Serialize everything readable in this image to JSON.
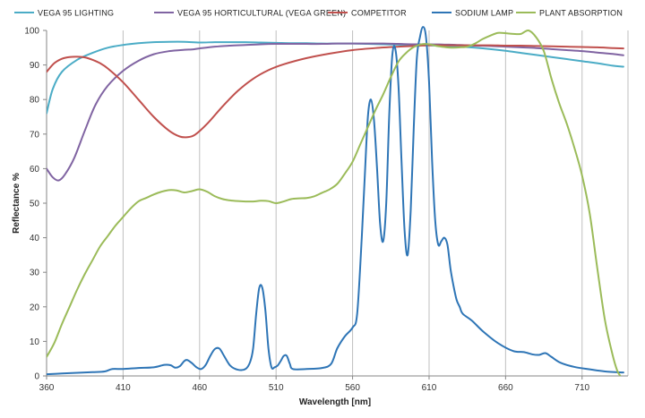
{
  "chart_data": {
    "type": "line",
    "title": "",
    "xlabel": "Wavelength [nm]",
    "ylabel": "Reflectance %",
    "xlim": [
      360,
      740
    ],
    "ylim": [
      0,
      100
    ],
    "x_ticks": [
      360,
      410,
      460,
      510,
      560,
      610,
      660,
      710
    ],
    "y_ticks": [
      0,
      10,
      20,
      30,
      40,
      50,
      60,
      70,
      80,
      90,
      100
    ],
    "grid": "vertical",
    "legend_position": "top",
    "series": [
      {
        "name": "VEGA 95 LIGHTING",
        "color": "#4bacc6",
        "points": [
          [
            360,
            76
          ],
          [
            364,
            83
          ],
          [
            370,
            88
          ],
          [
            380,
            91.5
          ],
          [
            390,
            93.5
          ],
          [
            400,
            95
          ],
          [
            410,
            95.8
          ],
          [
            420,
            96.3
          ],
          [
            430,
            96.6
          ],
          [
            440,
            96.7
          ],
          [
            450,
            96.7
          ],
          [
            460,
            96.5
          ],
          [
            470,
            96.6
          ],
          [
            480,
            96.6
          ],
          [
            490,
            96.6
          ],
          [
            500,
            96.5
          ],
          [
            510,
            96.4
          ],
          [
            520,
            96.3
          ],
          [
            530,
            96.3
          ],
          [
            540,
            96.2
          ],
          [
            550,
            96.2
          ],
          [
            560,
            96.2
          ],
          [
            570,
            96.1
          ],
          [
            580,
            96
          ],
          [
            590,
            95.9
          ],
          [
            600,
            95.8
          ],
          [
            610,
            95.7
          ],
          [
            620,
            95.5
          ],
          [
            630,
            95.3
          ],
          [
            640,
            95
          ],
          [
            650,
            94.6
          ],
          [
            660,
            94.1
          ],
          [
            670,
            93.5
          ],
          [
            680,
            92.9
          ],
          [
            690,
            92.3
          ],
          [
            700,
            91.7
          ],
          [
            710,
            91.1
          ],
          [
            720,
            90.5
          ],
          [
            730,
            89.8
          ],
          [
            737,
            89.5
          ]
        ]
      },
      {
        "name": "VEGA 95 HORTICULTURAL (VEGA GREEN)",
        "color": "#8064a2",
        "points": [
          [
            360,
            60
          ],
          [
            364,
            57.5
          ],
          [
            368,
            56.6
          ],
          [
            372,
            58.3
          ],
          [
            378,
            63
          ],
          [
            385,
            71
          ],
          [
            392,
            78.5
          ],
          [
            400,
            84
          ],
          [
            410,
            88.3
          ],
          [
            420,
            91.2
          ],
          [
            430,
            93.1
          ],
          [
            440,
            94
          ],
          [
            450,
            94.4
          ],
          [
            455,
            94.5
          ],
          [
            460,
            94.8
          ],
          [
            470,
            95.3
          ],
          [
            480,
            95.6
          ],
          [
            490,
            95.8
          ],
          [
            500,
            96
          ],
          [
            510,
            96.1
          ],
          [
            520,
            96.1
          ],
          [
            530,
            96.1
          ],
          [
            540,
            96.1
          ],
          [
            550,
            96.2
          ],
          [
            560,
            96.2
          ],
          [
            570,
            96.2
          ],
          [
            580,
            96.2
          ],
          [
            590,
            96.1
          ],
          [
            600,
            96
          ],
          [
            610,
            96
          ],
          [
            620,
            95.9
          ],
          [
            630,
            95.8
          ],
          [
            640,
            95.6
          ],
          [
            650,
            95.5
          ],
          [
            660,
            95.3
          ],
          [
            670,
            95.1
          ],
          [
            680,
            94.9
          ],
          [
            690,
            94.6
          ],
          [
            700,
            94.3
          ],
          [
            710,
            94
          ],
          [
            720,
            93.6
          ],
          [
            730,
            93.2
          ],
          [
            737,
            92.8
          ]
        ]
      },
      {
        "name": "COMPETITOR",
        "color": "#c0504d",
        "points": [
          [
            360,
            88
          ],
          [
            365,
            90.5
          ],
          [
            370,
            91.8
          ],
          [
            375,
            92.3
          ],
          [
            380,
            92.4
          ],
          [
            385,
            92.2
          ],
          [
            390,
            91.5
          ],
          [
            395,
            90.5
          ],
          [
            400,
            89
          ],
          [
            410,
            85
          ],
          [
            420,
            80
          ],
          [
            430,
            75
          ],
          [
            440,
            71
          ],
          [
            447,
            69.3
          ],
          [
            452,
            69.1
          ],
          [
            457,
            69.8
          ],
          [
            465,
            73
          ],
          [
            475,
            78
          ],
          [
            485,
            82.5
          ],
          [
            495,
            86
          ],
          [
            505,
            88.5
          ],
          [
            515,
            90.2
          ],
          [
            530,
            92
          ],
          [
            545,
            93.3
          ],
          [
            560,
            94.3
          ],
          [
            575,
            94.9
          ],
          [
            590,
            95.3
          ],
          [
            600,
            95.5
          ],
          [
            610,
            95.7
          ],
          [
            620,
            95.7
          ],
          [
            630,
            95.7
          ],
          [
            640,
            95.7
          ],
          [
            650,
            95.7
          ],
          [
            660,
            95.6
          ],
          [
            670,
            95.6
          ],
          [
            680,
            95.5
          ],
          [
            690,
            95.4
          ],
          [
            700,
            95.3
          ],
          [
            710,
            95.2
          ],
          [
            720,
            95.1
          ],
          [
            730,
            94.9
          ],
          [
            737,
            94.8
          ]
        ]
      },
      {
        "name": "SODIUM LAMP",
        "color": "#2e75b6",
        "points": [
          [
            360,
            0.5
          ],
          [
            370,
            0.7
          ],
          [
            380,
            0.9
          ],
          [
            390,
            1.1
          ],
          [
            398,
            1.3
          ],
          [
            403,
            2
          ],
          [
            410,
            2
          ],
          [
            420,
            2.3
          ],
          [
            430,
            2.5
          ],
          [
            437,
            3.2
          ],
          [
            441,
            3.1
          ],
          [
            444,
            2.4
          ],
          [
            447,
            2.8
          ],
          [
            450,
            4.3
          ],
          [
            452,
            4.6
          ],
          [
            455,
            3.7
          ],
          [
            458,
            2.5
          ],
          [
            461,
            2
          ],
          [
            464,
            3.2
          ],
          [
            467,
            5.8
          ],
          [
            470,
            7.8
          ],
          [
            473,
            7.9
          ],
          [
            476,
            5.8
          ],
          [
            480,
            3
          ],
          [
            485,
            1.8
          ],
          [
            490,
            2
          ],
          [
            493,
            4
          ],
          [
            495,
            8
          ],
          [
            497,
            18
          ],
          [
            499,
            25.5
          ],
          [
            501,
            25.5
          ],
          [
            503,
            19
          ],
          [
            505,
            8
          ],
          [
            507,
            2.5
          ],
          [
            509,
            2.5
          ],
          [
            511,
            3
          ],
          [
            513,
            4.3
          ],
          [
            515,
            5.8
          ],
          [
            517,
            5.8
          ],
          [
            519,
            3.5
          ],
          [
            521,
            2
          ],
          [
            530,
            2
          ],
          [
            540,
            2.3
          ],
          [
            546,
            3.5
          ],
          [
            550,
            8
          ],
          [
            555,
            11.5
          ],
          [
            560,
            14
          ],
          [
            563,
            18
          ],
          [
            566,
            40
          ],
          [
            568,
            58
          ],
          [
            570,
            75
          ],
          [
            572,
            80
          ],
          [
            574,
            74
          ],
          [
            576,
            60
          ],
          [
            578,
            44
          ],
          [
            580,
            39
          ],
          [
            582,
            50
          ],
          [
            584,
            76
          ],
          [
            586,
            93
          ],
          [
            588,
            94.5
          ],
          [
            590,
            84
          ],
          [
            592,
            62
          ],
          [
            594,
            42
          ],
          [
            596,
            35
          ],
          [
            598,
            48
          ],
          [
            600,
            72
          ],
          [
            602,
            92
          ],
          [
            604,
            98
          ],
          [
            606,
            101
          ],
          [
            608,
            98
          ],
          [
            610,
            85
          ],
          [
            612,
            62
          ],
          [
            614,
            45
          ],
          [
            616,
            38
          ],
          [
            618,
            39
          ],
          [
            620,
            40
          ],
          [
            622,
            38
          ],
          [
            624,
            31
          ],
          [
            626,
            26
          ],
          [
            628,
            22
          ],
          [
            630,
            20
          ],
          [
            632,
            18
          ],
          [
            638,
            16
          ],
          [
            645,
            13
          ],
          [
            655,
            9.5
          ],
          [
            665,
            7.2
          ],
          [
            672,
            6.9
          ],
          [
            678,
            6.2
          ],
          [
            682,
            6.1
          ],
          [
            686,
            6.6
          ],
          [
            690,
            5.5
          ],
          [
            696,
            3.8
          ],
          [
            705,
            2.6
          ],
          [
            715,
            1.9
          ],
          [
            725,
            1.3
          ],
          [
            737,
            1
          ]
        ]
      },
      {
        "name": "PLANT ABSORPTION",
        "color": "#9bbb59",
        "points": [
          [
            360,
            5.5
          ],
          [
            365,
            9.5
          ],
          [
            370,
            15
          ],
          [
            375,
            20
          ],
          [
            380,
            25
          ],
          [
            385,
            29.5
          ],
          [
            390,
            33.5
          ],
          [
            395,
            37.5
          ],
          [
            400,
            40.5
          ],
          [
            405,
            43.5
          ],
          [
            410,
            46
          ],
          [
            415,
            48.5
          ],
          [
            420,
            50.5
          ],
          [
            425,
            51.5
          ],
          [
            430,
            52.5
          ],
          [
            435,
            53.3
          ],
          [
            440,
            53.8
          ],
          [
            445,
            53.7
          ],
          [
            450,
            53.1
          ],
          [
            455,
            53.5
          ],
          [
            460,
            54
          ],
          [
            465,
            53.3
          ],
          [
            470,
            52
          ],
          [
            475,
            51.2
          ],
          [
            480,
            50.8
          ],
          [
            485,
            50.6
          ],
          [
            490,
            50.5
          ],
          [
            495,
            50.5
          ],
          [
            500,
            50.7
          ],
          [
            505,
            50.6
          ],
          [
            510,
            50
          ],
          [
            515,
            50.5
          ],
          [
            520,
            51.2
          ],
          [
            525,
            51.4
          ],
          [
            530,
            51.5
          ],
          [
            535,
            52
          ],
          [
            540,
            53
          ],
          [
            545,
            54
          ],
          [
            550,
            55.6
          ],
          [
            555,
            58.6
          ],
          [
            560,
            62
          ],
          [
            565,
            67
          ],
          [
            570,
            72
          ],
          [
            575,
            77
          ],
          [
            580,
            81.5
          ],
          [
            585,
            86.5
          ],
          [
            590,
            91
          ],
          [
            595,
            93.5
          ],
          [
            600,
            95.2
          ],
          [
            605,
            96
          ],
          [
            610,
            96
          ],
          [
            615,
            95.5
          ],
          [
            620,
            95.2
          ],
          [
            625,
            95
          ],
          [
            630,
            95.1
          ],
          [
            635,
            95.3
          ],
          [
            640,
            96.2
          ],
          [
            645,
            97.5
          ],
          [
            650,
            98.5
          ],
          [
            655,
            99.3
          ],
          [
            660,
            99.2
          ],
          [
            665,
            99
          ],
          [
            670,
            99
          ],
          [
            675,
            100
          ],
          [
            680,
            98
          ],
          [
            685,
            94
          ],
          [
            690,
            86
          ],
          [
            695,
            79
          ],
          [
            700,
            73
          ],
          [
            705,
            66
          ],
          [
            710,
            58
          ],
          [
            715,
            47
          ],
          [
            720,
            31
          ],
          [
            725,
            16
          ],
          [
            730,
            6
          ],
          [
            733,
            1.5
          ],
          [
            735,
            0
          ]
        ]
      }
    ]
  }
}
